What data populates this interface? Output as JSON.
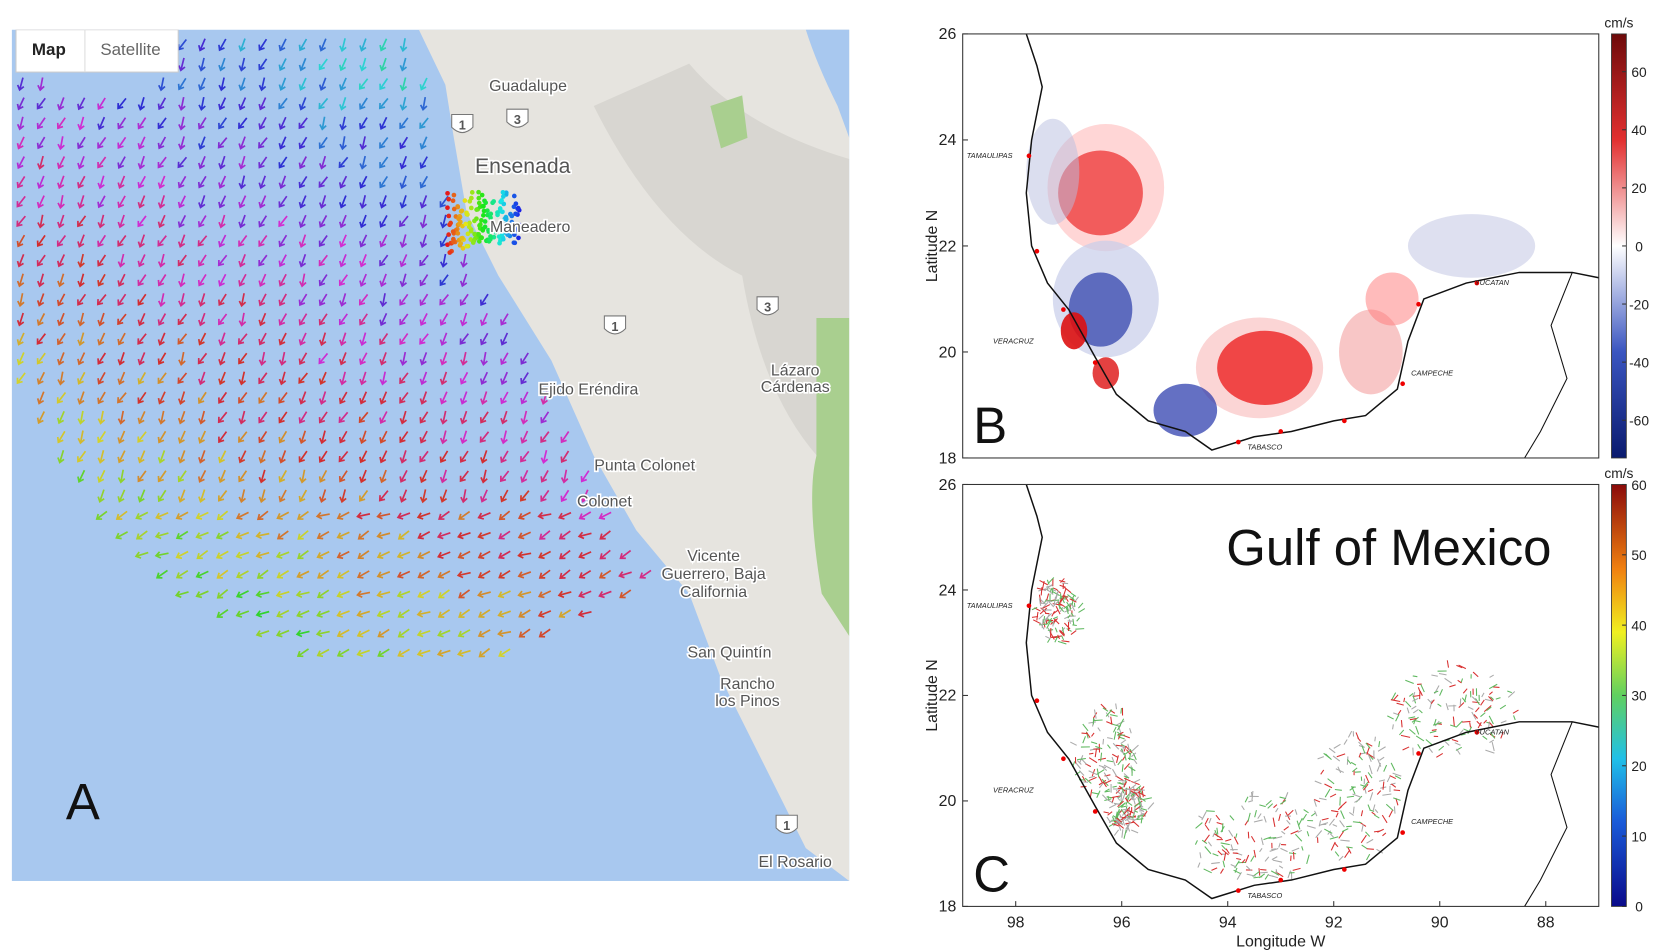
{
  "panel_a": {
    "controls": [
      "Map",
      "Satellite"
    ],
    "place_labels": {
      "guadalupe": "Guadalupe",
      "ensenada": "Ensenada",
      "maneadero": "Maneadero",
      "ejido": "Ejido Eréndira",
      "lazaro": [
        "Lázaro",
        "Cárdenas"
      ],
      "punta_colonet": "Punta Colonet",
      "colonet": "Colonet",
      "vicente": [
        "Vicente",
        "Guerrero, Baja",
        "California"
      ],
      "san_quintin": "San Quintín",
      "rancho": [
        "Rancho",
        "los Pinos"
      ],
      "el_rosario": "El Rosario"
    },
    "shields": [
      "1",
      "3",
      "3",
      "1",
      "1"
    ],
    "label": "A"
  },
  "panel_b": {
    "label": "B",
    "ylabel": "Latitude N",
    "ylim": [
      18,
      26
    ],
    "yticks": [
      18,
      20,
      22,
      24,
      26
    ],
    "xlim": [
      99,
      87
    ],
    "colorbar": {
      "unit": "cm/s",
      "lim": [
        -73,
        73
      ],
      "ticks": [
        60,
        40,
        20,
        0,
        -20,
        -40,
        -60
      ]
    },
    "states": [
      "TAMAULIPAS",
      "VERACRUZ",
      "TABASCO",
      "CAMPECHE",
      "YUCATAN"
    ]
  },
  "panel_c": {
    "label": "C",
    "title": "Gulf of Mexico",
    "ylabel": "Latitude N",
    "xlabel": "Longitude W",
    "ylim": [
      18,
      26
    ],
    "yticks": [
      18,
      20,
      22,
      24,
      26
    ],
    "xlim": [
      99,
      87
    ],
    "xticks": [
      98,
      96,
      94,
      92,
      90,
      88
    ],
    "colorbar": {
      "unit": "cm/s",
      "lim": [
        0,
        60
      ],
      "ticks": [
        60,
        50,
        40,
        30,
        20,
        10,
        0
      ]
    },
    "states": [
      "TAMAULIPAS",
      "VERACRUZ",
      "TABASCO",
      "CAMPECHE",
      "YUCATAN"
    ]
  }
}
